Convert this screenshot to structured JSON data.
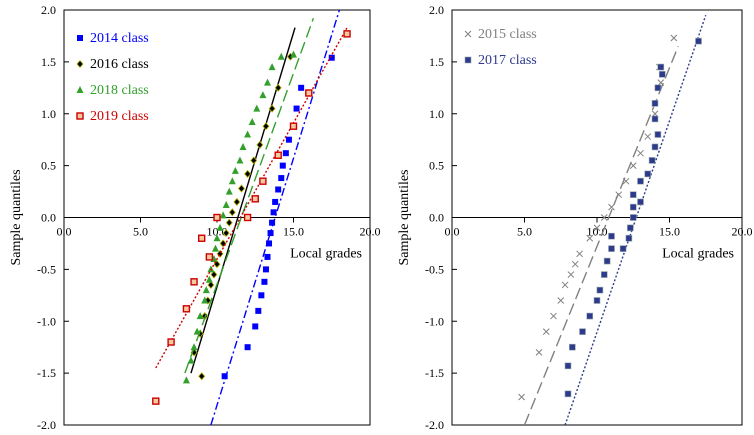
{
  "chart_data": [
    {
      "type": "scatter",
      "title": "",
      "xlabel": "Local grades",
      "ylabel": "Sample quantiles",
      "xlim": [
        0,
        20
      ],
      "ylim": [
        -2,
        2
      ],
      "xticks": [
        "0.0",
        "5.0",
        "10.0",
        "15.0",
        "20.0"
      ],
      "yticks": [
        "2.0",
        "1.5",
        "1.0",
        "0.5",
        "0.0",
        "-0.5",
        "-1.0",
        "-1.5",
        "-2.0"
      ],
      "grid": false,
      "legend_position": "top-left",
      "series": [
        {
          "name": "2014 class",
          "color": "#0000ff",
          "marker": "square",
          "line_style": "dashdot",
          "fit_line": [
            [
              9.6,
              -2.0
            ],
            [
              18.0,
              2.0
            ]
          ],
          "points": [
            [
              10.5,
              -1.53
            ],
            [
              12.0,
              -1.25
            ],
            [
              12.5,
              -1.05
            ],
            [
              12.7,
              -0.9
            ],
            [
              12.9,
              -0.75
            ],
            [
              13.1,
              -0.62
            ],
            [
              13.2,
              -0.5
            ],
            [
              13.3,
              -0.38
            ],
            [
              13.4,
              -0.25
            ],
            [
              13.5,
              -0.15
            ],
            [
              13.6,
              -0.05
            ],
            [
              13.7,
              0.05
            ],
            [
              13.8,
              0.15
            ],
            [
              14.0,
              0.27
            ],
            [
              14.2,
              0.38
            ],
            [
              14.3,
              0.5
            ],
            [
              14.5,
              0.62
            ],
            [
              14.7,
              0.75
            ],
            [
              15.0,
              0.88
            ],
            [
              15.2,
              1.05
            ],
            [
              15.5,
              1.25
            ],
            [
              17.5,
              1.54
            ]
          ]
        },
        {
          "name": "2016 class",
          "color": "#000000",
          "marker": "diamond",
          "line_style": "solid",
          "fit_line": [
            [
              8.3,
              -1.5
            ],
            [
              15.1,
              1.83
            ]
          ],
          "points": [
            [
              9.0,
              -1.53
            ],
            [
              8.5,
              -1.3
            ],
            [
              8.9,
              -1.12
            ],
            [
              9.2,
              -0.95
            ],
            [
              9.4,
              -0.8
            ],
            [
              9.6,
              -0.65
            ],
            [
              9.8,
              -0.55
            ],
            [
              10.0,
              -0.45
            ],
            [
              10.2,
              -0.35
            ],
            [
              10.4,
              -0.25
            ],
            [
              10.6,
              -0.15
            ],
            [
              10.8,
              -0.05
            ],
            [
              11.0,
              0.05
            ],
            [
              11.3,
              0.15
            ],
            [
              11.6,
              0.28
            ],
            [
              12.0,
              0.42
            ],
            [
              12.4,
              0.55
            ],
            [
              12.8,
              0.7
            ],
            [
              13.2,
              0.88
            ],
            [
              13.6,
              1.05
            ],
            [
              14.0,
              1.25
            ],
            [
              14.8,
              1.55
            ]
          ]
        },
        {
          "name": "2018 class",
          "color": "#33a02c",
          "marker": "triangle",
          "line_style": "longdash",
          "fit_line": [
            [
              7.9,
              -1.5
            ],
            [
              16.3,
              1.92
            ]
          ],
          "points": [
            [
              8.0,
              -1.57
            ],
            [
              8.3,
              -1.38
            ],
            [
              8.5,
              -1.25
            ],
            [
              8.7,
              -1.1
            ],
            [
              8.9,
              -0.95
            ],
            [
              9.2,
              -0.8
            ],
            [
              9.3,
              -0.7
            ],
            [
              9.5,
              -0.6
            ],
            [
              9.6,
              -0.5
            ],
            [
              9.8,
              -0.4
            ],
            [
              9.9,
              -0.3
            ],
            [
              10.0,
              -0.2
            ],
            [
              10.2,
              -0.1
            ],
            [
              10.4,
              0.02
            ],
            [
              10.6,
              0.12
            ],
            [
              10.8,
              0.25
            ],
            [
              11.0,
              0.35
            ],
            [
              11.2,
              0.45
            ],
            [
              11.5,
              0.55
            ],
            [
              11.7,
              0.68
            ],
            [
              12.0,
              0.8
            ],
            [
              12.3,
              0.92
            ],
            [
              12.6,
              1.05
            ],
            [
              13.0,
              1.18
            ],
            [
              13.3,
              1.3
            ],
            [
              13.6,
              1.45
            ],
            [
              14.2,
              1.55
            ],
            [
              15.0,
              1.57
            ]
          ]
        },
        {
          "name": "2019 class",
          "color": "#cc0000",
          "marker": "square-open",
          "line_style": "dotted",
          "fit_line": [
            [
              6.0,
              -1.45
            ],
            [
              18.5,
              1.83
            ]
          ],
          "points": [
            [
              6.0,
              -1.77
            ],
            [
              7.0,
              -1.2
            ],
            [
              8.0,
              -0.88
            ],
            [
              8.5,
              -0.62
            ],
            [
              9.5,
              -0.38
            ],
            [
              9.0,
              -0.2
            ],
            [
              10.0,
              0.0
            ],
            [
              12.0,
              0.0
            ],
            [
              12.5,
              0.18
            ],
            [
              13.0,
              0.35
            ],
            [
              14.0,
              0.6
            ],
            [
              15.0,
              0.88
            ],
            [
              16.0,
              1.2
            ],
            [
              18.5,
              1.77
            ]
          ]
        }
      ]
    },
    {
      "type": "scatter",
      "title": "",
      "xlabel": "Local grades",
      "ylabel": "Sample quantiles",
      "xlim": [
        0,
        20
      ],
      "ylim": [
        -2,
        2
      ],
      "xticks": [
        "0.0",
        "5.0",
        "10.0",
        "15.0",
        "20.0"
      ],
      "yticks": [
        "2.0",
        "1.5",
        "1.0",
        "0.5",
        "0.0",
        "-0.5",
        "-1.0",
        "-1.5",
        "-2.0"
      ],
      "grid": false,
      "legend_position": "top-left",
      "series": [
        {
          "name": "2015 class",
          "color": "#808080",
          "marker": "x",
          "line_style": "longdash",
          "fit_line": [
            [
              5.0,
              -2.0
            ],
            [
              15.6,
              1.65
            ]
          ],
          "points": [
            [
              4.8,
              -1.73
            ],
            [
              6.0,
              -1.3
            ],
            [
              6.5,
              -1.1
            ],
            [
              7.0,
              -0.95
            ],
            [
              7.5,
              -0.8
            ],
            [
              7.8,
              -0.65
            ],
            [
              8.2,
              -0.55
            ],
            [
              8.5,
              -0.45
            ],
            [
              8.8,
              -0.35
            ],
            [
              9.5,
              -0.2
            ],
            [
              10.0,
              -0.1
            ],
            [
              10.5,
              0.0
            ],
            [
              11.0,
              0.1
            ],
            [
              11.5,
              0.22
            ],
            [
              12.0,
              0.35
            ],
            [
              12.5,
              0.5
            ],
            [
              13.0,
              0.62
            ],
            [
              13.5,
              0.78
            ],
            [
              14.0,
              1.0
            ],
            [
              14.4,
              1.3
            ],
            [
              14.3,
              1.45
            ],
            [
              15.3,
              1.73
            ]
          ]
        },
        {
          "name": "2017 class",
          "color": "#2e3a8c",
          "marker": "square",
          "line_style": "dotted",
          "fit_line": [
            [
              7.8,
              -2.0
            ],
            [
              17.5,
              1.95
            ]
          ],
          "points": [
            [
              8.0,
              -1.7
            ],
            [
              8.0,
              -1.43
            ],
            [
              8.3,
              -1.25
            ],
            [
              9.0,
              -1.1
            ],
            [
              9.5,
              -0.95
            ],
            [
              10.0,
              -0.8
            ],
            [
              10.2,
              -0.7
            ],
            [
              10.5,
              -0.55
            ],
            [
              10.7,
              -0.42
            ],
            [
              11.0,
              -0.3
            ],
            [
              11.0,
              -0.18
            ],
            [
              11.8,
              -0.3
            ],
            [
              12.2,
              -0.2
            ],
            [
              12.3,
              -0.1
            ],
            [
              12.5,
              0.0
            ],
            [
              12.5,
              0.1
            ],
            [
              12.5,
              0.22
            ],
            [
              13.0,
              0.15
            ],
            [
              13.0,
              0.35
            ],
            [
              13.5,
              0.42
            ],
            [
              13.8,
              0.55
            ],
            [
              14.0,
              0.68
            ],
            [
              14.2,
              0.8
            ],
            [
              14.0,
              0.95
            ],
            [
              14.0,
              1.1
            ],
            [
              14.2,
              1.25
            ],
            [
              14.5,
              1.38
            ],
            [
              14.4,
              1.45
            ],
            [
              17.0,
              1.7
            ]
          ]
        }
      ]
    }
  ]
}
